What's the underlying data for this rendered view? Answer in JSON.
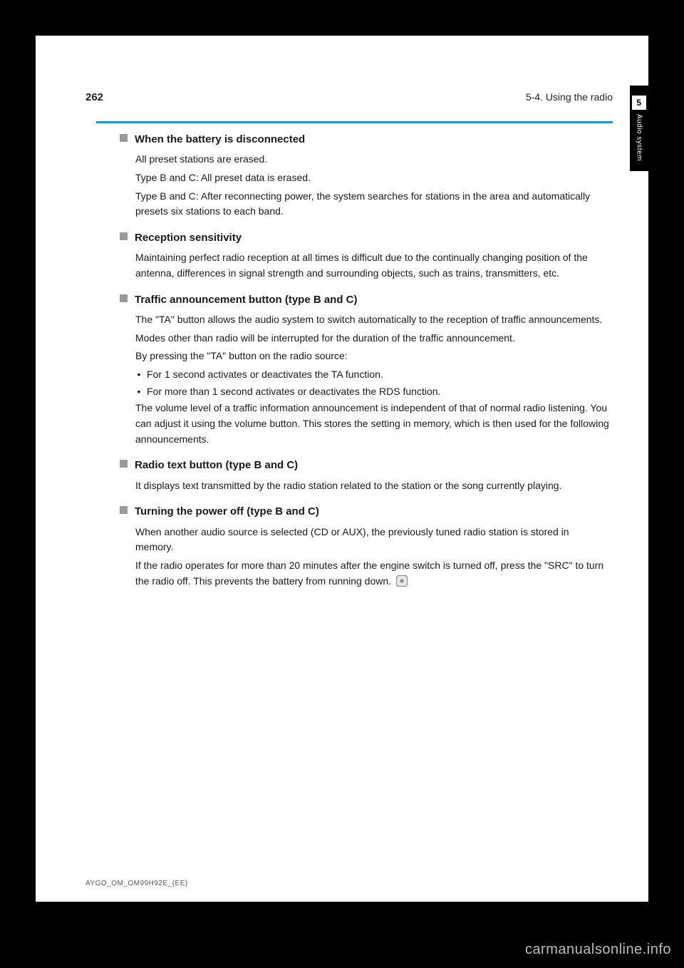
{
  "header": {
    "page_number": "262",
    "breadcrumb": "5-4. Using the radio"
  },
  "side_tab": {
    "chapter_number": "5",
    "chapter_label": "Audio system"
  },
  "sections": [
    {
      "heading": "When the battery is disconnected",
      "paragraphs": [
        "All preset stations are erased.",
        "Type B and C: All preset data is erased.",
        "Type B and C: After reconnecting power, the system searches for stations in the area and automatically presets six stations to each band."
      ]
    },
    {
      "heading": "Reception sensitivity",
      "paragraphs": [
        "Maintaining perfect radio reception at all times is difficult due to the continually changing position of the antenna, differences in signal strength and surrounding objects, such as trains, transmitters, etc."
      ]
    },
    {
      "heading": "Traffic announcement button (type B and C)",
      "paragraphs": [
        "The \"TA\" button allows the audio system to switch automatically to the reception of traffic announcements.",
        "Modes other than radio will be interrupted for the duration of the traffic announcement.",
        "By pressing the \"TA\" button on the radio source:"
      ],
      "bullets": [
        "For 1 second activates or deactivates the TA function.",
        "For more than 1 second activates or deactivates the RDS function."
      ],
      "paragraphs_after": [
        "The volume level of a traffic information announcement is independent of that of normal radio listening. You can adjust it using the volume button. This stores the setting in memory, which is then used for the following announcements."
      ]
    },
    {
      "heading": "Radio text button (type B and C)",
      "paragraphs": [
        "It displays text transmitted by the radio station related to the station or the song currently playing."
      ]
    },
    {
      "heading": "Turning the power off (type B and C)",
      "paragraphs": [
        "When another audio source is selected (CD or AUX), the previously tuned radio station is stored in memory.",
        "If the radio operates for more than 20 minutes after the engine switch is turned off, press the \"SRC\"        to turn the radio off. This prevents the battery from running down."
      ],
      "inline_icon_index": 1
    }
  ],
  "footer": {
    "doc_code": "AYGO_OM_OM99H92E_(EE)"
  },
  "watermark": "carmanualsonline.info",
  "colors": {
    "rule": "#1f97c9",
    "page_bg": "#ffffff",
    "outer_bg": "#000000",
    "square_bullet": "#9a9a9a"
  }
}
